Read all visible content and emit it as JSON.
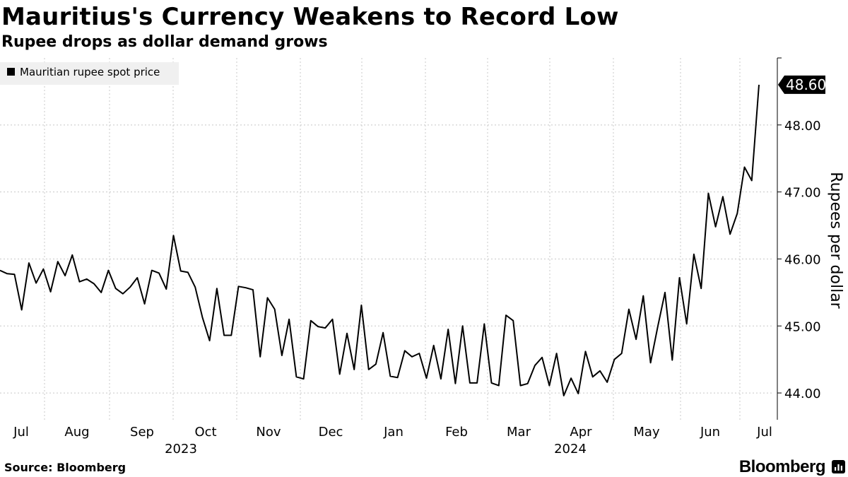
{
  "header": {
    "title": "Mauritius's Currency Weakens to Record Low",
    "subtitle": "Rupee drops as dollar demand grows"
  },
  "footer": {
    "source": "Source: Bloomberg",
    "brand": "Bloomberg",
    "brand_icon": "bloomberg-terminal-icon"
  },
  "chart_data": {
    "type": "line",
    "title": "Mauritius's Currency Weakens to Record Low",
    "subtitle": "Rupee drops as dollar demand grows",
    "xlabel": "",
    "ylabel": "Rupees per dollar",
    "ylim": [
      43.6,
      49.0
    ],
    "yticks": [
      44.0,
      45.0,
      46.0,
      47.0,
      48.0
    ],
    "ytick_labels": [
      "44.00",
      "45.00",
      "46.00",
      "47.00",
      "48.00"
    ],
    "grid": true,
    "legend_position": "top-left",
    "last_value_label": "48.60",
    "last_value": 48.6,
    "x_month_labels": [
      "Jul",
      "Aug",
      "Sep",
      "Oct",
      "Nov",
      "Dec",
      "Jan",
      "Feb",
      "Mar",
      "Apr",
      "May",
      "Jun",
      "Jul"
    ],
    "x_year_labels": [
      "2023",
      "2024"
    ],
    "series": [
      {
        "name": "Mauritian rupee spot price",
        "color": "#000000",
        "x": [
          0,
          0.5,
          1,
          1.5,
          2,
          2.5,
          3,
          3.5,
          4,
          4.5,
          5,
          5.5,
          6,
          6.5,
          7,
          7.5,
          8,
          8.5,
          9,
          9.5,
          10,
          10.5,
          11,
          11.5,
          12,
          12.5,
          13,
          13.5,
          14,
          14.5,
          15,
          15.5,
          16,
          16.5,
          17,
          17.5,
          18,
          18.5,
          19,
          19.5,
          20,
          20.5,
          21,
          21.5,
          22,
          22.5,
          23,
          23.5,
          24,
          24.5,
          25,
          25.5,
          26,
          26.5,
          27,
          27.5,
          28,
          28.5,
          29,
          29.5,
          30,
          30.5,
          31,
          31.5,
          32,
          32.5,
          33,
          33.5,
          34,
          34.5,
          35,
          35.5,
          36,
          36.5,
          37,
          37.5,
          38,
          38.5,
          39,
          39.5,
          40,
          40.5,
          41,
          41.5,
          42,
          42.5,
          43,
          43.5,
          44,
          44.5,
          45,
          45.5,
          46,
          46.5,
          47,
          47.5,
          48,
          48.5,
          49,
          49.5,
          50,
          50.5,
          51,
          51.5,
          52,
          52.5
        ],
        "values": [
          45.83,
          45.78,
          45.77,
          45.24,
          45.94,
          45.64,
          45.85,
          45.51,
          45.96,
          45.75,
          46.06,
          45.66,
          45.7,
          45.63,
          45.5,
          45.83,
          45.56,
          45.48,
          45.58,
          45.72,
          45.33,
          45.83,
          45.79,
          45.55,
          46.35,
          45.82,
          45.8,
          45.58,
          45.13,
          44.78,
          45.56,
          44.86,
          44.86,
          45.59,
          45.57,
          45.54,
          44.54,
          45.42,
          45.25,
          44.56,
          45.1,
          44.24,
          44.21,
          45.08,
          44.99,
          44.97,
          45.1,
          44.28,
          44.89,
          44.35,
          45.31,
          44.35,
          44.43,
          44.9,
          44.25,
          44.23,
          44.63,
          44.54,
          44.59,
          44.22,
          44.71,
          44.21,
          44.95,
          44.14,
          45.0,
          44.15,
          44.15,
          45.03,
          44.15,
          44.11,
          45.16,
          45.08,
          44.11,
          44.14,
          44.41,
          44.53,
          44.11,
          44.59,
          43.96,
          44.22,
          43.99,
          44.62,
          44.24,
          44.33,
          44.16,
          44.5,
          44.59,
          45.25,
          44.8,
          45.45,
          44.45,
          44.99,
          45.5,
          44.49,
          45.72,
          45.03,
          46.07,
          45.56,
          46.98,
          46.48,
          46.93,
          46.37,
          46.68,
          47.37,
          47.17,
          48.6
        ]
      }
    ]
  }
}
